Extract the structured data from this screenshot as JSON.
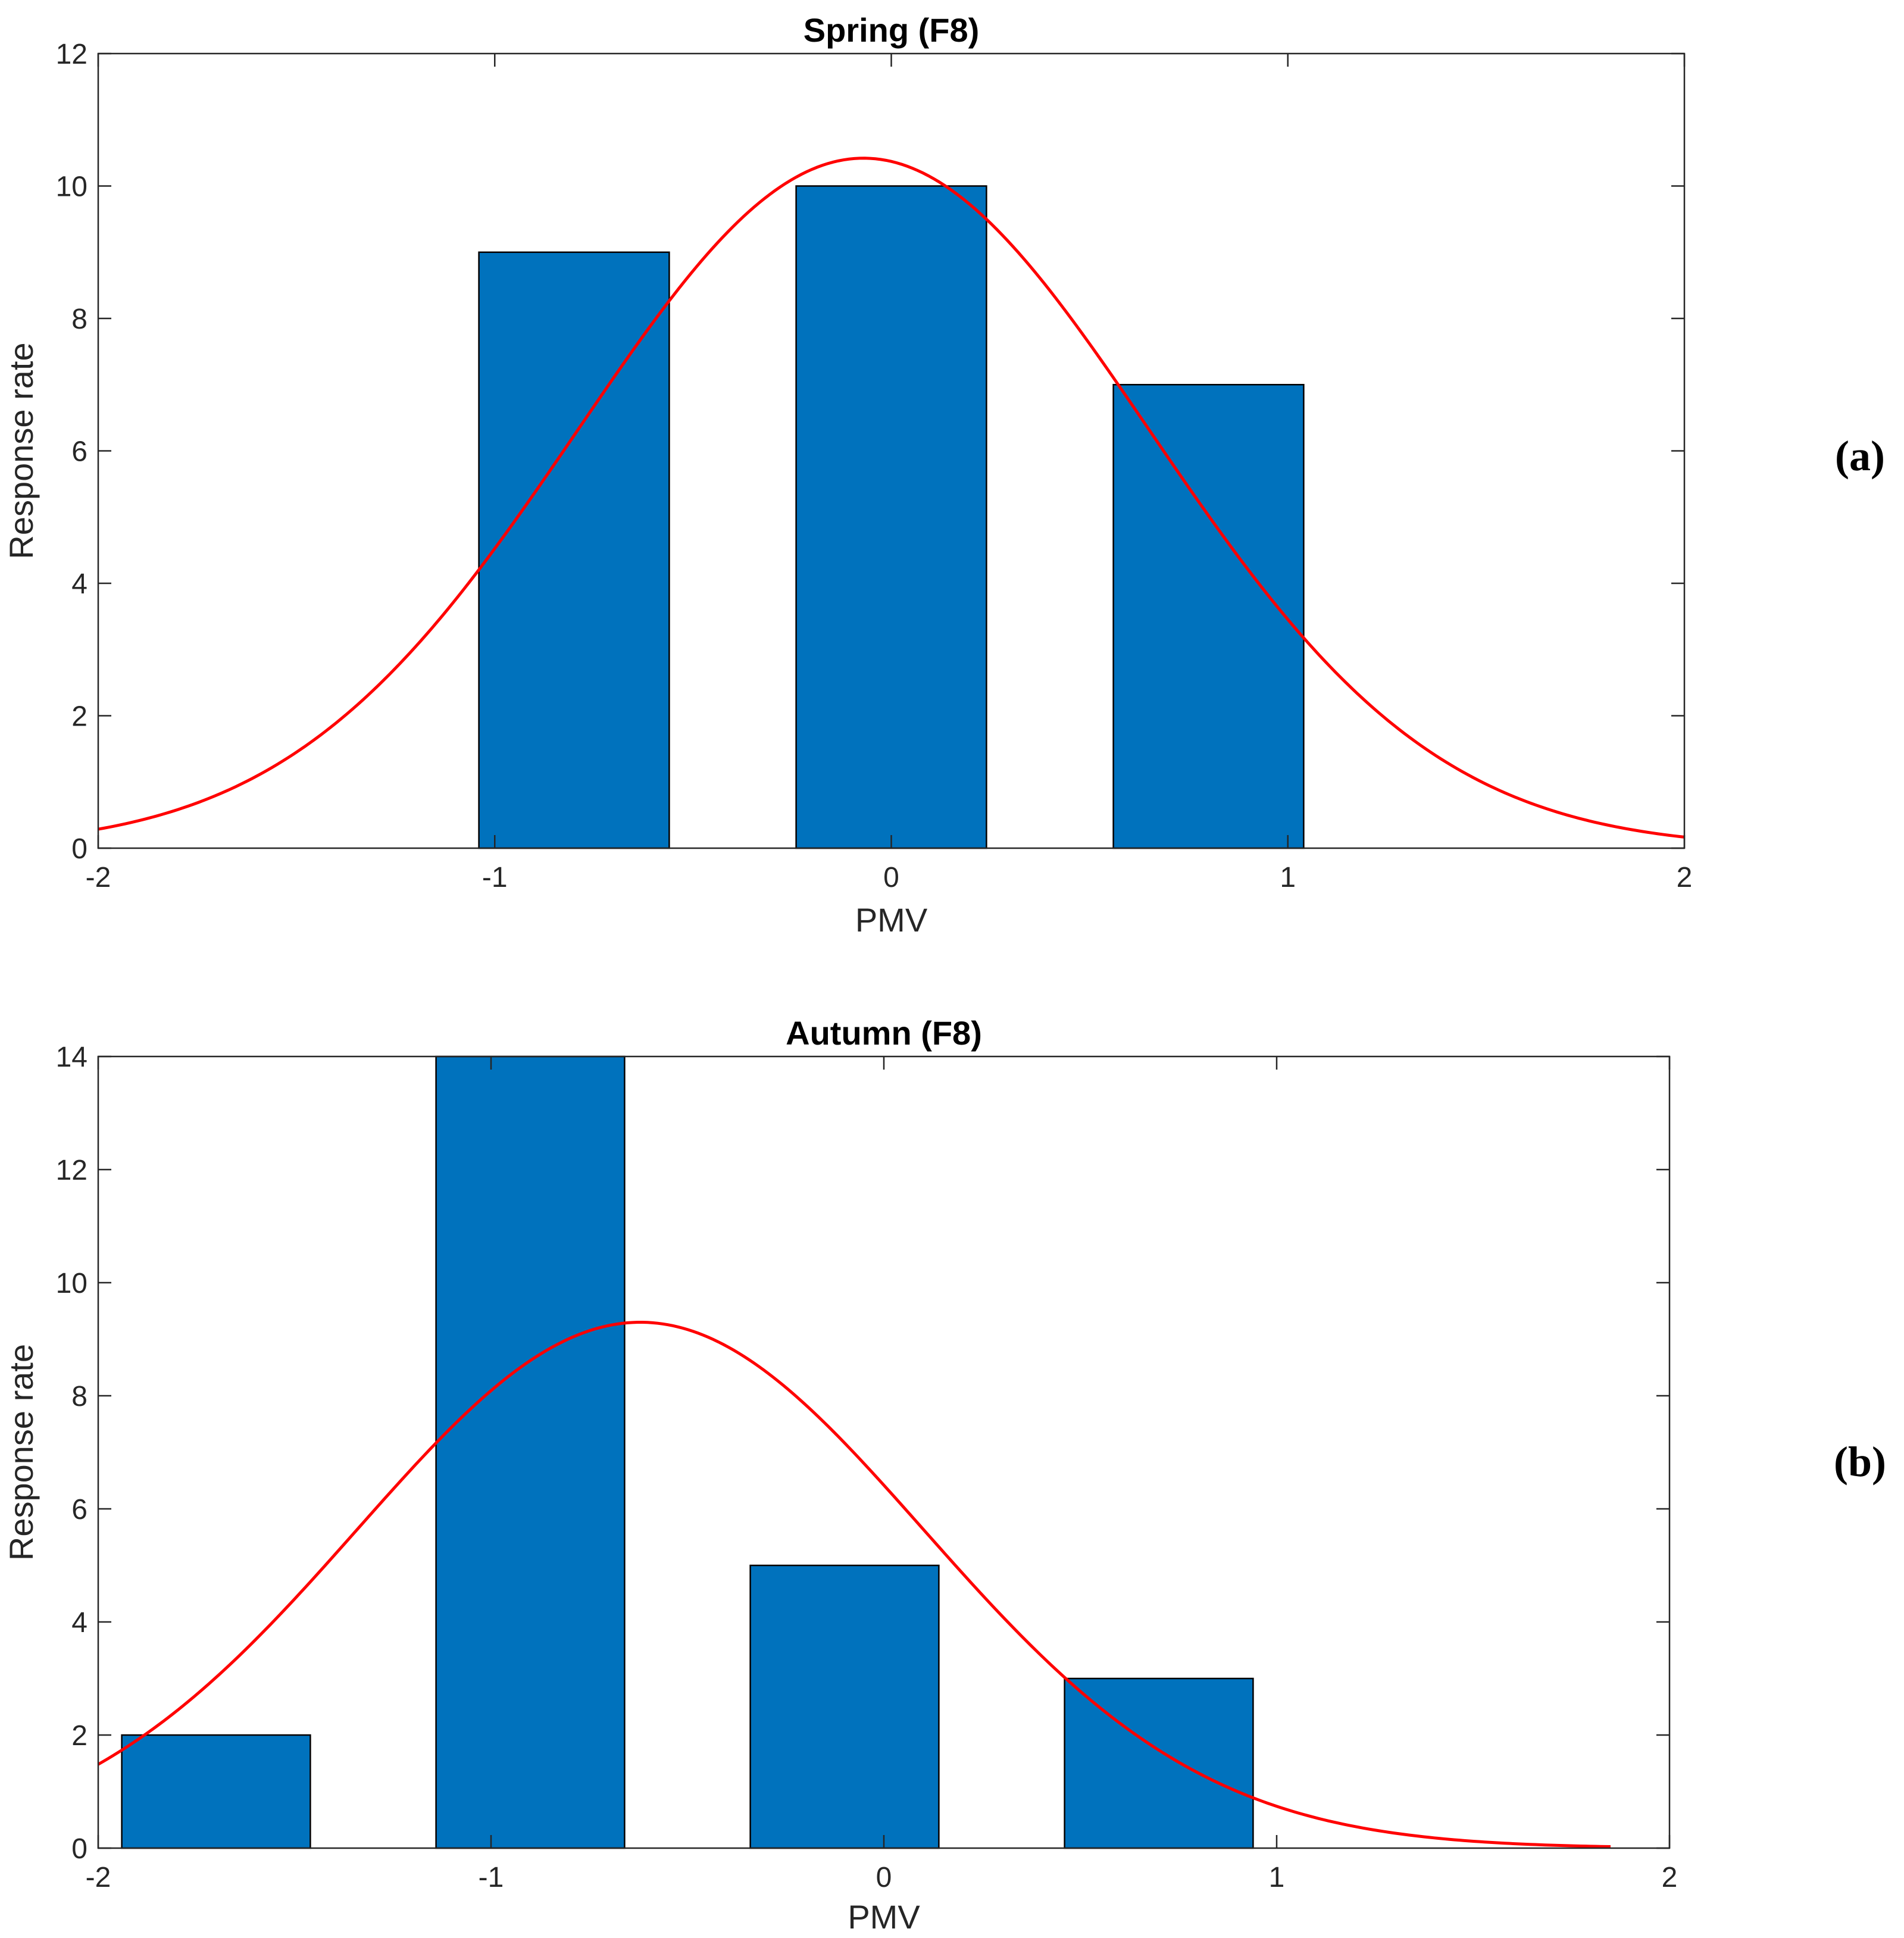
{
  "colors": {
    "bar": "#0072BD",
    "fit": "#FF0000"
  },
  "chart_data": [
    {
      "type": "bar",
      "panel_label": "(a)",
      "title": "Spring (F8)",
      "xlabel": "PMV",
      "ylabel": "Response rate",
      "xlim": [
        -2,
        2
      ],
      "ylim": [
        0,
        12
      ],
      "xticks": [
        -2,
        -1,
        0,
        1,
        2
      ],
      "xtick_labels": [
        "-2",
        "-1",
        "0",
        "1",
        "2"
      ],
      "yticks": [
        0,
        2,
        4,
        6,
        8,
        10,
        12
      ],
      "ytick_labels": [
        "0",
        "2",
        "4",
        "6",
        "8",
        "10",
        "12"
      ],
      "bar_width": 0.48,
      "bars": [
        {
          "center": -0.8,
          "value": 9
        },
        {
          "center": 0.0,
          "value": 10
        },
        {
          "center": 0.8,
          "value": 7
        }
      ],
      "fit": {
        "type": "normal",
        "mu": -0.07,
        "sigma": 0.72,
        "peak": 10.42,
        "x_range": [
          -2,
          2
        ]
      }
    },
    {
      "type": "bar",
      "panel_label": "(b)",
      "title": "Autumn (F8)",
      "xlabel": "PMV",
      "ylabel": "Response rate",
      "xlim": [
        -2,
        2
      ],
      "ylim": [
        0,
        14
      ],
      "xticks": [
        -2,
        -1,
        0,
        1,
        2
      ],
      "xtick_labels": [
        "-2",
        "-1",
        "0",
        "1",
        "2"
      ],
      "yticks": [
        0,
        2,
        4,
        6,
        8,
        10,
        12,
        14
      ],
      "ytick_labels": [
        "0",
        "2",
        "4",
        "6",
        "8",
        "10",
        "12",
        "14"
      ],
      "bar_width": 0.48,
      "bars": [
        {
          "center": -1.7,
          "value": 2
        },
        {
          "center": -0.9,
          "value": 14
        },
        {
          "center": -0.1,
          "value": 5
        },
        {
          "center": 0.7,
          "value": 3
        }
      ],
      "fit": {
        "type": "normal",
        "mu": -0.62,
        "sigma": 0.72,
        "peak": 9.3,
        "x_range": [
          -2,
          1.85
        ]
      }
    }
  ]
}
